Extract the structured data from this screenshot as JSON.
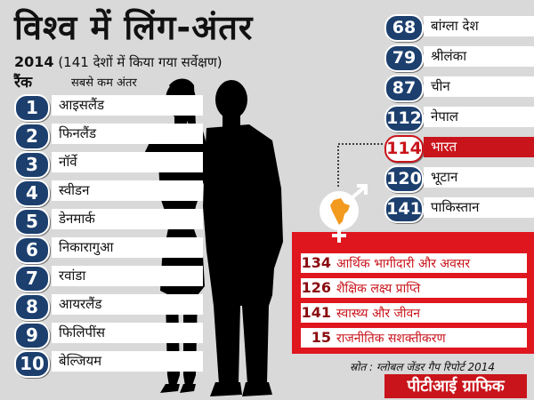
{
  "title": "विश्व में लिंग-अंतर",
  "subtitle": {
    "year": "2014",
    "note": "(141 देशों में किया गया सर्वेक्षण)"
  },
  "headers": {
    "rank": "रैंक",
    "least_gap": "सबसे कम अंतर"
  },
  "top_countries": [
    {
      "rank": "1",
      "name": "आइसलैंड"
    },
    {
      "rank": "2",
      "name": "फिनलैंड"
    },
    {
      "rank": "3",
      "name": "नॉर्वे"
    },
    {
      "rank": "4",
      "name": "स्वीडन"
    },
    {
      "rank": "5",
      "name": "डेनमार्क"
    },
    {
      "rank": "6",
      "name": "निकारागुआ"
    },
    {
      "rank": "7",
      "name": "रवांडा"
    },
    {
      "rank": "8",
      "name": "आयरलैंड"
    },
    {
      "rank": "9",
      "name": "फिलिपींस"
    },
    {
      "rank": "10",
      "name": "बेल्जियम"
    }
  ],
  "region_countries": [
    {
      "rank": "68",
      "name": "बांग्ला देश"
    },
    {
      "rank": "79",
      "name": "श्रीलंका"
    },
    {
      "rank": "87",
      "name": "चीन"
    },
    {
      "rank": "112",
      "name": "नेपाल"
    },
    {
      "rank": "114",
      "name": "भारत"
    },
    {
      "rank": "120",
      "name": "भूटान"
    },
    {
      "rank": "141",
      "name": "पाकिस्तान"
    }
  ],
  "highlight_country": "भारत",
  "india_stats": [
    {
      "rank": "134",
      "label": "आर्थिक भागीदारी और अवसर"
    },
    {
      "rank": "126",
      "label": "शैक्षिक लक्ष्य प्राप्ति"
    },
    {
      "rank": "141",
      "label": "स्वास्थ्य और जीवन"
    },
    {
      "rank": "15",
      "label": "राजनीतिक सशक्तीकरण"
    }
  ],
  "source": "स्रोत : ग्लोबल जेंडर गैप रिपोर्ट 2014",
  "brand": "पीटीआई ग्राफिक",
  "colors": {
    "badge_blue": "#1c3f6e",
    "accent_red": "#e0161f",
    "background": "#d9d9d9"
  },
  "icons": [
    "female-silhouette",
    "male-silhouette",
    "gender-symbol-icon",
    "india-map-icon"
  ]
}
